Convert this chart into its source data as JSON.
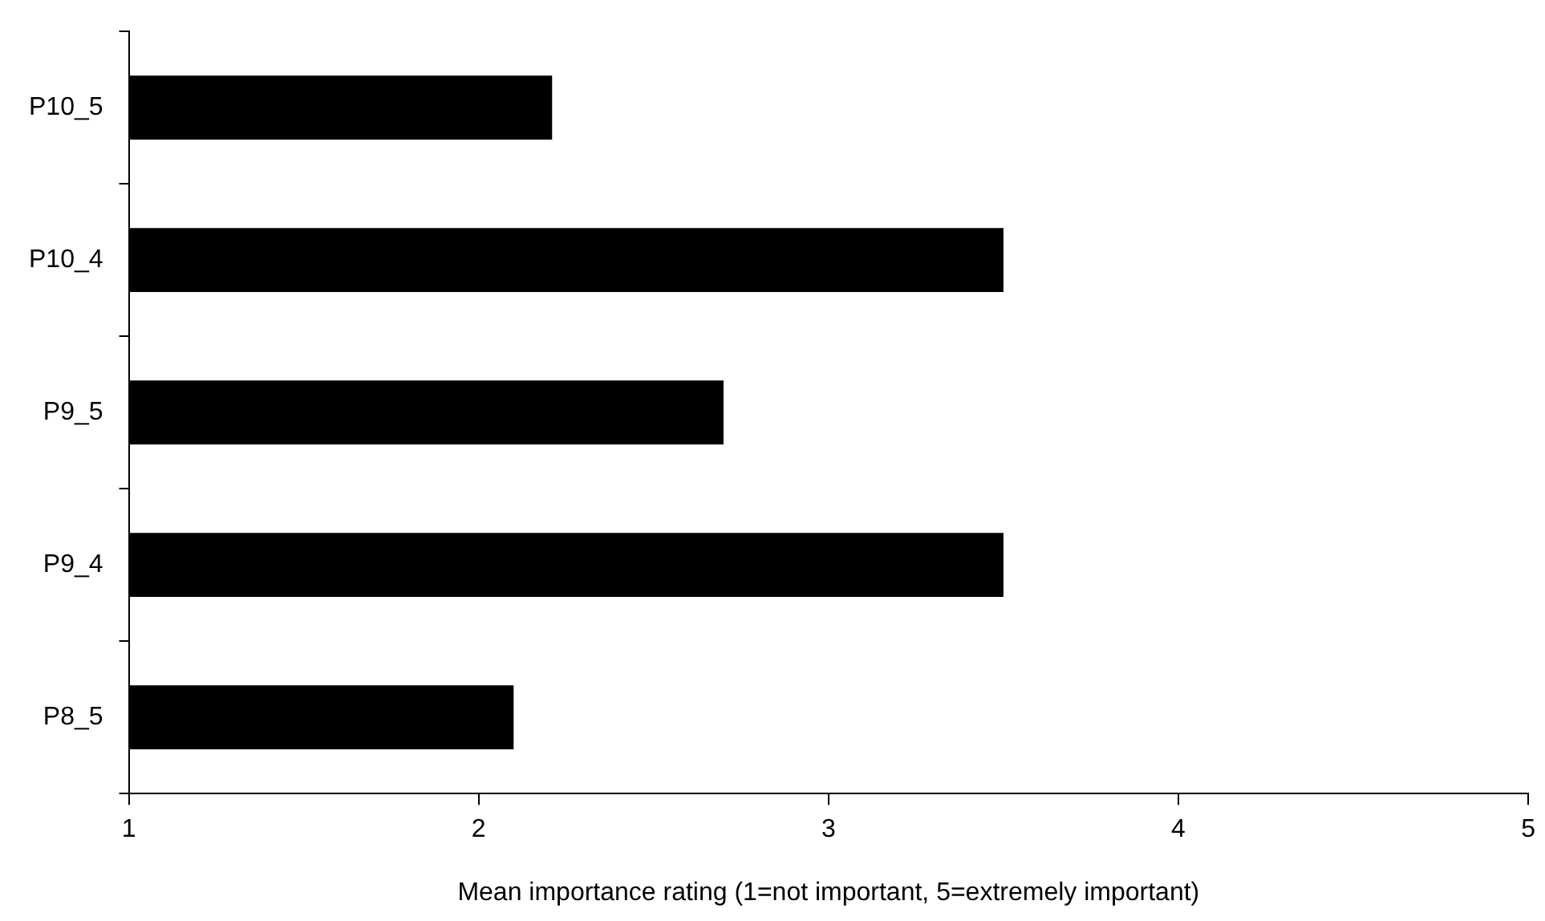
{
  "chart_data": {
    "type": "bar",
    "orientation": "horizontal",
    "categories": [
      "P10_5",
      "P10_4",
      "P9_5",
      "P9_4",
      "P8_5"
    ],
    "values": [
      2.21,
      3.5,
      2.7,
      3.5,
      2.1
    ],
    "color": "#000000",
    "xlabel": "Mean importance rating (1=not important, 5=extremely important)",
    "xlim": [
      1,
      5
    ],
    "xticks": [
      1,
      2,
      3,
      4,
      5
    ],
    "grid": false,
    "legend": false
  }
}
